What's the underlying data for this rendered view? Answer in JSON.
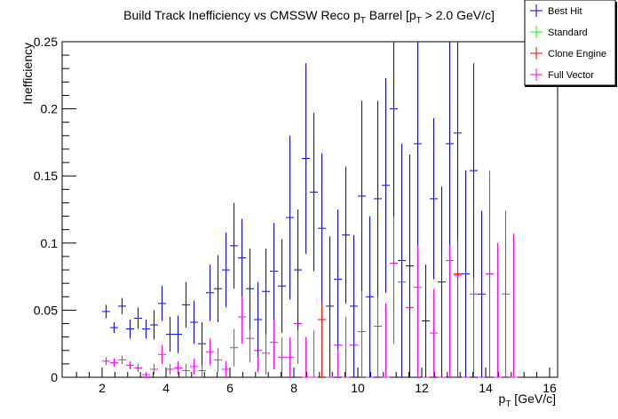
{
  "chart_data": {
    "type": "scatter",
    "title": "Build Track Inefficiency vs CMSSW Reco p",
    "title_sub1": "T",
    "title_mid": " Barrel [p",
    "title_sub2": "T",
    "title_end": " > 2.0 GeV/c]",
    "xlabel": "p",
    "xlabel_sub": "T",
    "xlabel_unit": " [GeV/c]",
    "ylabel": "Inefficiency",
    "xlim": [
      0.75,
      16.25
    ],
    "ylim": [
      0,
      0.25
    ],
    "x_ticks": [
      2,
      4,
      6,
      8,
      10,
      12,
      14,
      16
    ],
    "x_tick_labels": [
      "2",
      "4",
      "6",
      "8",
      "10",
      "12",
      "14",
      "16"
    ],
    "y_ticks": [
      0,
      0.05,
      0.1,
      0.15,
      0.2,
      0.25
    ],
    "y_tick_labels": [
      "0",
      "0.05",
      "0.1",
      "0.15",
      "0.2",
      "0.25"
    ],
    "bin_width": 0.25,
    "legend_position": "top-right",
    "series": [
      {
        "name": "Best Hit",
        "color": "#0000ff",
        "points": [
          [
            2.125,
            0.049,
            0.005
          ],
          [
            2.375,
            0.037,
            0.004
          ],
          [
            2.625,
            0.053,
            0.006
          ],
          [
            2.875,
            0.036,
            0.007
          ],
          [
            3.125,
            0.044,
            0.008
          ],
          [
            3.375,
            0.036,
            0.007
          ],
          [
            3.625,
            0.039,
            0.011
          ],
          [
            3.875,
            0.055,
            0.013
          ],
          [
            4.125,
            0.032,
            0.013
          ],
          [
            4.375,
            0.032,
            0.014
          ],
          [
            4.625,
            0.054,
            0.017
          ],
          [
            4.875,
            0.041,
            0.016
          ],
          [
            5.125,
            0.025,
            0.016
          ],
          [
            5.375,
            0.063,
            0.021
          ],
          [
            5.625,
            0.066,
            0.025
          ],
          [
            5.875,
            0.08,
            0.028
          ],
          [
            6.125,
            0.098,
            0.032
          ],
          [
            6.375,
            0.089,
            0.029
          ],
          [
            6.625,
            0.066,
            0.03
          ],
          [
            6.875,
            0.043,
            0.028
          ],
          [
            7.125,
            0.064,
            0.032
          ],
          [
            7.375,
            0.079,
            0.036
          ],
          [
            7.625,
            0.068,
            0.035
          ],
          [
            7.875,
            0.119,
            0.061
          ],
          [
            8.125,
            0.08,
            0.045
          ],
          [
            8.375,
            0.163,
            0.071
          ],
          [
            8.625,
            0.138,
            0.059
          ],
          [
            8.875,
            0.111,
            0.056
          ],
          [
            9.125,
            0.053,
            0.052
          ],
          [
            9.375,
            0.073,
            0.052
          ],
          [
            9.625,
            0.106,
            0.051
          ],
          [
            9.875,
            0.053,
            0.053
          ],
          [
            10.125,
            0.135,
            0.071
          ],
          [
            10.375,
            0.06,
            0.06
          ],
          [
            10.625,
            0.133,
            0.073
          ],
          [
            10.875,
            0.143,
            0.08
          ],
          [
            11.125,
            0.2,
            0.08
          ],
          [
            11.375,
            0.087,
            0.087
          ],
          [
            11.625,
            0.083,
            0.083
          ],
          [
            11.875,
            0.174,
            0.076
          ],
          [
            12.125,
            0.042,
            0.042
          ],
          [
            12.375,
            0.133,
            0.06
          ],
          [
            12.625,
            0.071,
            0.071
          ],
          [
            12.875,
            0.174,
            0.076
          ],
          [
            13.125,
            0.182,
            0.08
          ],
          [
            13.375,
            0.077,
            0.077
          ],
          [
            13.625,
            0.154,
            0.08
          ],
          [
            13.875,
            0.062,
            0.062
          ]
        ]
      },
      {
        "name": "Standard",
        "color": "#00ff00",
        "points": []
      },
      {
        "name": "Clone Engine",
        "color": "#ff0000",
        "points": [
          [
            8.875,
            0.043,
            0.043
          ],
          [
            13.125,
            0.077,
            0.077
          ]
        ]
      },
      {
        "name": "Full Vector",
        "color": "#ff00ff",
        "points": [
          [
            2.125,
            0.012,
            0.003
          ],
          [
            2.375,
            0.011,
            0.003
          ],
          [
            2.625,
            0.013,
            0.003
          ],
          [
            2.875,
            0.009,
            0.003
          ],
          [
            3.125,
            0.007,
            0.003
          ],
          [
            3.375,
            0.002,
            0.002
          ],
          [
            3.625,
            0.006,
            0.004
          ],
          [
            3.875,
            0.017,
            0.007
          ],
          [
            4.125,
            0.006,
            0.004
          ],
          [
            4.375,
            0.007,
            0.005
          ],
          [
            4.625,
            0.005,
            0.005
          ],
          [
            4.875,
            0.008,
            0.006
          ],
          [
            5.125,
            0.005,
            0.005
          ],
          [
            5.375,
            0.019,
            0.01
          ],
          [
            5.625,
            0.013,
            0.009
          ],
          [
            5.875,
            0.006,
            0.006
          ],
          [
            6.125,
            0.022,
            0.014
          ],
          [
            6.375,
            0.045,
            0.02
          ],
          [
            6.625,
            0.029,
            0.018
          ],
          [
            6.875,
            0.02,
            0.016
          ],
          [
            7.125,
            0.018,
            0.016
          ],
          [
            7.375,
            0.026,
            0.02
          ],
          [
            7.625,
            0.015,
            0.015
          ],
          [
            7.875,
            0.015,
            0.015
          ],
          [
            8.125,
            0.04,
            0.03
          ],
          [
            8.375,
            0.0,
            0.03
          ],
          [
            8.625,
            0.0,
            0.035
          ],
          [
            8.875,
            0.043,
            0.043
          ],
          [
            9.125,
            0.0,
            0.04
          ],
          [
            9.375,
            0.024,
            0.024
          ],
          [
            9.625,
            0.0,
            0.045
          ],
          [
            9.875,
            0.024,
            0.024
          ],
          [
            10.125,
            0.034,
            0.034
          ],
          [
            10.375,
            0.0,
            0.05
          ],
          [
            10.625,
            0.038,
            0.038
          ],
          [
            10.875,
            0.0,
            0.055
          ],
          [
            11.125,
            0.085,
            0.06
          ],
          [
            11.375,
            0.071,
            0.071
          ],
          [
            11.625,
            0.052,
            0.052
          ],
          [
            11.875,
            0.067,
            0.067
          ],
          [
            12.125,
            0.0,
            0.07
          ],
          [
            12.375,
            0.033,
            0.033
          ],
          [
            12.625,
            0.0,
            0.08
          ],
          [
            12.875,
            0.087,
            0.087
          ],
          [
            13.125,
            0.076,
            0.076
          ],
          [
            13.375,
            0.0,
            0.09
          ],
          [
            13.625,
            0.062,
            0.062
          ],
          [
            13.875,
            0.0,
            0.1
          ],
          [
            14.125,
            0.077,
            0.077
          ],
          [
            14.375,
            0.0,
            0.1
          ],
          [
            14.625,
            0.062,
            0.062
          ],
          [
            14.875,
            0.0,
            0.107
          ]
        ]
      }
    ]
  }
}
